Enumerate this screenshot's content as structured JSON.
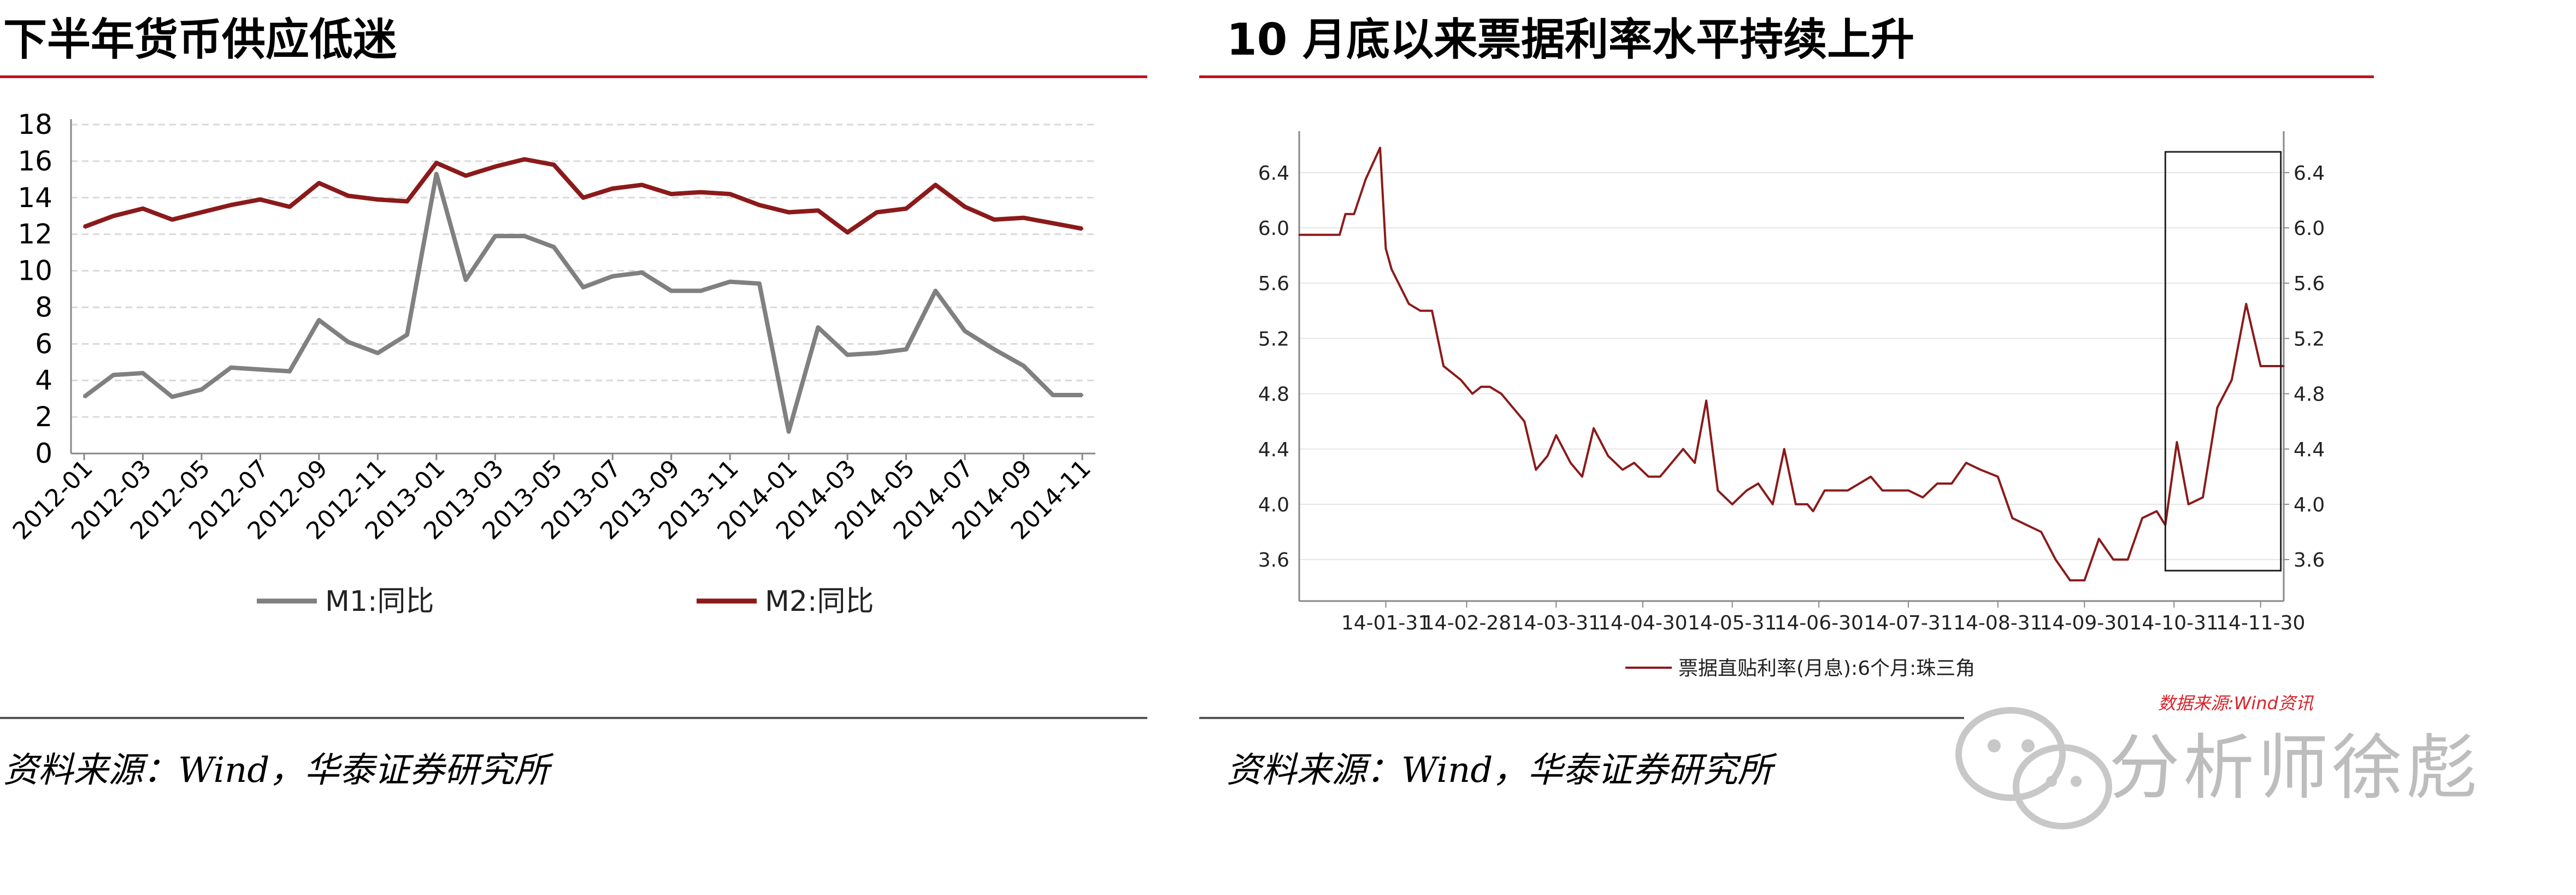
{
  "left": {
    "title": "下半年货币供应低迷",
    "source": "资料来源：Wind，华泰证券研究所",
    "colors": {
      "M1": "#808080",
      "M2": "#8b1a1a",
      "rule": "#c0151b"
    }
  },
  "right": {
    "title": "10 月底以来票据利率水平持续上升",
    "source": "资料来源：Wind，华泰证券研究所",
    "data_source_note": "数据来源:Wind资讯",
    "colors": {
      "series": "#8b1a1a"
    }
  },
  "watermark": {
    "text": "分析师徐彪",
    "icon": "wechat-icon"
  },
  "chart_data": [
    {
      "type": "line",
      "title": "",
      "x": [
        "2012-01",
        "2012-02",
        "2012-03",
        "2012-04",
        "2012-05",
        "2012-06",
        "2012-07",
        "2012-08",
        "2012-09",
        "2012-10",
        "2012-11",
        "2012-12",
        "2013-01",
        "2013-02",
        "2013-03",
        "2013-04",
        "2013-05",
        "2013-06",
        "2013-07",
        "2013-08",
        "2013-09",
        "2013-10",
        "2013-11",
        "2013-12",
        "2014-01",
        "2014-02",
        "2014-03",
        "2014-04",
        "2014-05",
        "2014-06",
        "2014-07",
        "2014-08",
        "2014-09",
        "2014-10",
        "2014-11"
      ],
      "x_tick_labels": [
        "2012-01",
        "2012-03",
        "2012-05",
        "2012-07",
        "2012-09",
        "2012-11",
        "2013-01",
        "2013-03",
        "2013-05",
        "2013-07",
        "2013-09",
        "2013-11",
        "2014-01",
        "2014-03",
        "2014-05",
        "2014-07",
        "2014-09",
        "2014-11"
      ],
      "ylim": [
        0,
        18
      ],
      "y_ticks": [
        "0",
        "2",
        "4",
        "6",
        "8",
        "10",
        "12",
        "14",
        "16",
        "18"
      ],
      "grid": true,
      "legend_position": "bottom",
      "series": [
        {
          "name": "M1:同比",
          "values": [
            3.1,
            4.3,
            4.4,
            3.1,
            3.5,
            4.7,
            4.6,
            4.5,
            7.3,
            6.1,
            5.5,
            6.5,
            15.3,
            9.5,
            11.9,
            11.9,
            11.3,
            9.1,
            9.7,
            9.9,
            8.9,
            8.9,
            9.4,
            9.3,
            1.2,
            6.9,
            5.4,
            5.5,
            5.7,
            8.9,
            6.7,
            5.7,
            4.8,
            3.2,
            3.2
          ]
        },
        {
          "name": "M2:同比",
          "values": [
            12.4,
            13.0,
            13.4,
            12.8,
            13.2,
            13.6,
            13.9,
            13.5,
            14.8,
            14.1,
            13.9,
            13.8,
            15.9,
            15.2,
            15.7,
            16.1,
            15.8,
            14.0,
            14.5,
            14.7,
            14.2,
            14.3,
            14.2,
            13.6,
            13.2,
            13.3,
            12.1,
            13.2,
            13.4,
            14.7,
            13.5,
            12.8,
            12.9,
            12.6,
            12.3
          ]
        }
      ]
    },
    {
      "type": "line",
      "title": "",
      "x_tick_labels": [
        "14-01-31",
        "14-02-28",
        "14-03-31",
        "14-04-30",
        "14-05-31",
        "14-06-30",
        "14-07-31",
        "14-08-31",
        "14-09-30",
        "14-10-31",
        "14-11-30"
      ],
      "ylim": [
        3.3,
        6.7
      ],
      "y_ticks": [
        "3.6",
        "4.0",
        "4.4",
        "4.8",
        "5.2",
        "5.6",
        "6.0",
        "6.4"
      ],
      "secondary_y_ticks": [
        "3.6",
        "4.0",
        "4.4",
        "4.8",
        "5.2",
        "5.6",
        "6.0",
        "6.4"
      ],
      "grid": true,
      "legend_position": "bottom",
      "highlight_box": {
        "x_from": "14-10-28",
        "x_to": "14-12-07",
        "y_from": 3.52,
        "y_to": 6.55
      },
      "series": [
        {
          "name": "票据直贴利率(月息):6个月:珠三角",
          "x": [
            "14-01-01",
            "14-01-15",
            "14-01-17",
            "14-01-20",
            "14-01-24",
            "14-01-29",
            "14-01-31",
            "14-02-02",
            "14-02-08",
            "14-02-12",
            "14-02-16",
            "14-02-20",
            "14-02-26",
            "14-02-28",
            "14-03-02",
            "14-03-05",
            "14-03-08",
            "14-03-12",
            "14-03-16",
            "14-03-20",
            "14-03-24",
            "14-03-28",
            "14-03-31",
            "14-04-05",
            "14-04-09",
            "14-04-13",
            "14-04-18",
            "14-04-23",
            "14-04-27",
            "14-05-02",
            "14-05-06",
            "14-05-10",
            "14-05-14",
            "14-05-18",
            "14-05-22",
            "14-05-26",
            "14-05-31",
            "14-06-05",
            "14-06-09",
            "14-06-14",
            "14-06-18",
            "14-06-22",
            "14-06-26",
            "14-06-28",
            "14-07-02",
            "14-07-06",
            "14-07-10",
            "14-07-14",
            "14-07-18",
            "14-07-22",
            "14-07-26",
            "14-07-31",
            "14-08-05",
            "14-08-10",
            "14-08-15",
            "14-08-20",
            "14-08-25",
            "14-08-31",
            "14-09-05",
            "14-09-10",
            "14-09-15",
            "14-09-20",
            "14-09-25",
            "14-09-30",
            "14-10-05",
            "14-10-10",
            "14-10-15",
            "14-10-20",
            "14-10-25",
            "14-10-28",
            "14-11-01",
            "14-11-05",
            "14-11-10",
            "14-11-15",
            "14-11-20",
            "14-11-25",
            "14-11-30",
            "14-12-03",
            "14-12-06",
            "14-12-08"
          ],
          "values": [
            5.95,
            5.95,
            6.1,
            6.1,
            6.35,
            6.58,
            5.85,
            5.7,
            5.45,
            5.4,
            5.4,
            5.0,
            4.9,
            4.85,
            4.8,
            4.85,
            4.85,
            4.8,
            4.7,
            4.6,
            4.25,
            4.35,
            4.5,
            4.3,
            4.2,
            4.55,
            4.35,
            4.25,
            4.3,
            4.2,
            4.2,
            4.3,
            4.4,
            4.3,
            4.75,
            4.1,
            4.0,
            4.1,
            4.15,
            4.0,
            4.4,
            4.0,
            4.0,
            3.95,
            4.1,
            4.1,
            4.1,
            4.15,
            4.2,
            4.1,
            4.1,
            4.1,
            4.05,
            4.15,
            4.15,
            4.3,
            4.25,
            4.2,
            3.9,
            3.85,
            3.8,
            3.6,
            3.45,
            3.45,
            3.75,
            3.6,
            3.6,
            3.9,
            3.95,
            3.85,
            4.45,
            4.0,
            4.05,
            4.7,
            4.9,
            5.45,
            5.0,
            5.0,
            5.0,
            5.0
          ]
        }
      ]
    }
  ]
}
